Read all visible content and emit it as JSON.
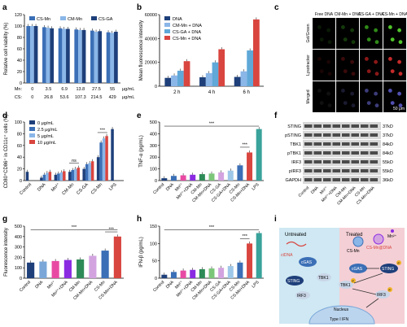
{
  "panel_labels": {
    "a": "a",
    "b": "b",
    "c": "c",
    "d": "d",
    "e": "e",
    "f": "f",
    "g": "g",
    "h": "h",
    "i": "i"
  },
  "chart_data": [
    {
      "id": "a",
      "type": "bar",
      "ylabel": "Relative cell viability (%)",
      "ylim": [
        0,
        120
      ],
      "yticks": [
        0,
        20,
        40,
        60,
        80,
        100,
        120
      ],
      "row1_label": "Mn:",
      "row2_label": "CS:",
      "row1": [
        "0",
        "3.5",
        "6.9",
        "13.8",
        "27.5",
        "55"
      ],
      "row2": [
        "0",
        "26.8",
        "53.6",
        "107.3",
        "214.5",
        "429"
      ],
      "unit": "μg/mL",
      "legend": [
        "CS-Mn",
        "CM-Mn",
        "CS-GA"
      ],
      "colors": [
        "#3b6fb6",
        "#8ab6e8",
        "#1e3f7a"
      ],
      "series": [
        {
          "name": "CS-Mn",
          "values": [
            100,
            98,
            96,
            94,
            92,
            89
          ]
        },
        {
          "name": "CM-Mn",
          "values": [
            100,
            97,
            95,
            93,
            90,
            88
          ]
        },
        {
          "name": "CS-GA",
          "values": [
            100,
            96,
            95,
            93,
            91,
            90
          ]
        }
      ]
    },
    {
      "id": "b",
      "type": "bar",
      "ylabel": "Mean fluorescence intensity",
      "ylim": [
        0,
        60000
      ],
      "yticks": [
        "0",
        "20000",
        "40000",
        "60000"
      ],
      "categories": [
        "2 h",
        "4 h",
        "6 h"
      ],
      "legend": [
        "DNA",
        "CM-Mn + DNA",
        "CS-GA + DNA",
        "CS-Mn + DNA"
      ],
      "colors": [
        "#1e3f7a",
        "#8ab6e8",
        "#5fa8d8",
        "#d9453f"
      ],
      "series": [
        {
          "name": "DNA",
          "values": [
            7000,
            7500,
            7800
          ]
        },
        {
          "name": "CM-Mn + DNA",
          "values": [
            9000,
            11000,
            12500
          ]
        },
        {
          "name": "CS-GA + DNA",
          "values": [
            13000,
            20000,
            30000
          ]
        },
        {
          "name": "CS-Mn + DNA",
          "values": [
            21000,
            31000,
            56000
          ]
        }
      ]
    },
    {
      "id": "d",
      "type": "bar",
      "ylabel": "CD80⁺CD86⁺ in CD11c⁺ cells (%)",
      "ylim": [
        0,
        100
      ],
      "yticks": [
        0,
        20,
        40,
        60,
        80,
        100
      ],
      "categories": [
        "Control",
        "DNA",
        "Mn²⁺",
        "CM-Mn",
        "CS-GA",
        "CS-Mn",
        "LPS"
      ],
      "legend": [
        "0 μg/mL",
        "2.5 μg/mL",
        "5 μg/mL",
        "10 μg/mL"
      ],
      "colors": [
        "#1e3f7a",
        "#3b6fb6",
        "#8ab6e8",
        "#d9453f"
      ],
      "series": [
        {
          "name": "0 μg/mL",
          "values": [
            15,
            5,
            10,
            15,
            20,
            40,
            88
          ]
        },
        {
          "name": "2.5 μg/mL",
          "values": [
            null,
            10,
            12,
            18,
            28,
            65,
            null
          ]
        },
        {
          "name": "5 μg/mL",
          "values": [
            null,
            13,
            14,
            20,
            30,
            72,
            null
          ]
        },
        {
          "name": "10 μg/mL",
          "values": [
            null,
            15,
            16,
            22,
            33,
            76,
            null
          ]
        }
      ],
      "sig": [
        "ns",
        "***"
      ]
    },
    {
      "id": "e",
      "type": "bar",
      "ylabel": "TNF-α (pg/mL)",
      "ylim": [
        0,
        500
      ],
      "yticks": [
        0,
        100,
        200,
        300,
        400,
        500
      ],
      "categories": [
        "Control",
        "DNA",
        "Mn²⁺",
        "Mn²⁺+DNA",
        "CM-Mn",
        "CM-Mn+DNA",
        "CS-GA",
        "CS-GA+DNA",
        "CS-Mn",
        "CS-Mn+DNA",
        "LPS"
      ],
      "values": [
        20,
        40,
        45,
        50,
        55,
        60,
        70,
        85,
        130,
        240,
        440
      ],
      "colors": [
        "#1e3f7a",
        "#3b6fb6",
        "#e84aa3",
        "#8a2be2",
        "#2e8b57",
        "#7cc67a",
        "#d3a3e0",
        "#9ec7e8",
        "#3b6fb6",
        "#d9453f",
        "#3aa39b"
      ],
      "sig": [
        "***",
        "***"
      ]
    },
    {
      "id": "g",
      "type": "bar",
      "ylabel": "Fluorescence intensity",
      "ylim": [
        0,
        500
      ],
      "yticks": [
        0,
        100,
        200,
        300,
        400,
        500
      ],
      "categories": [
        "Control",
        "DNA",
        "Mn²⁺",
        "Mn²⁺+DNA",
        "CM-Mn",
        "CM-Mn+DNA",
        "CS-Mn",
        "CS-Mn+DNA"
      ],
      "values": [
        150,
        160,
        165,
        175,
        180,
        215,
        265,
        400
      ],
      "colors": [
        "#1e3f7a",
        "#7aa7d8",
        "#e84aa3",
        "#8a2be2",
        "#2e8b57",
        "#d3a3e0",
        "#3b6fb6",
        "#d9453f"
      ],
      "sig": [
        "***",
        "***"
      ]
    },
    {
      "id": "h",
      "type": "bar",
      "ylabel": "IFN-β (pg/mL)",
      "ylim": [
        0,
        150
      ],
      "yticks": [
        0,
        50,
        100,
        150
      ],
      "categories": [
        "Control",
        "DNA",
        "Mn²⁺",
        "Mn²⁺+DNA",
        "CM-Mn",
        "CM-Mn+DNA",
        "CS-GA",
        "CS-GA+DNA",
        "CS-Mn",
        "CS-Mn+DNA",
        "LPS"
      ],
      "values": [
        10,
        18,
        22,
        24,
        26,
        28,
        30,
        35,
        45,
        100,
        130
      ],
      "colors": [
        "#1e3f7a",
        "#3b6fb6",
        "#e84aa3",
        "#8a2be2",
        "#2e8b57",
        "#7cc67a",
        "#d3a3e0",
        "#9ec7e8",
        "#3b6fb6",
        "#d9453f",
        "#3aa39b"
      ],
      "sig": [
        "***",
        "***"
      ]
    }
  ],
  "panel_c": {
    "columns": [
      "Free DNA",
      "CM-Mn + DNA",
      "CS-GA + DNA",
      "CS-Mn + DNA"
    ],
    "rows": [
      "Gel/Green",
      "Lysotracker",
      "Merged"
    ],
    "scale": "50 μm"
  },
  "panel_f": {
    "lanes": [
      "Control",
      "DNA",
      "Mn²⁺",
      "Mn²⁺+DNA",
      "CM-Mn",
      "CM-Mn+DNA",
      "CS-Mn",
      "CS-Mn+DNA"
    ],
    "proteins": [
      "STING",
      "pSTING",
      "TBK1",
      "pTBK1",
      "IRF3",
      "pIRF3",
      "GAPDH"
    ],
    "sizes": [
      "37kD",
      "37kD",
      "84kD",
      "84kD",
      "55kD",
      "55kD",
      "36kD"
    ]
  },
  "panel_i": {
    "untreated": "Untreated",
    "treated": "Treated",
    "ctdna": "ctDNA",
    "cgas": "cGAS",
    "sting": "STING",
    "tbk1": "TBK1",
    "irf3": "IRF3",
    "csmn": "CS-Mn",
    "csmn_dna": "CS-Mn@DNA",
    "mn": "Mn²⁺",
    "p": "P",
    "nucleus": "Nucleus",
    "type_i_ifn": "Type I IFN"
  }
}
